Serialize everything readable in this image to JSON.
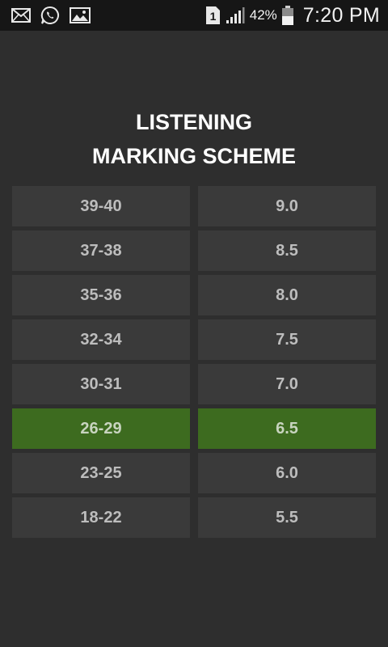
{
  "status_bar": {
    "icons_left": [
      "mail-icon",
      "whatsapp-icon",
      "gallery-icon"
    ],
    "sim_label": "1",
    "battery_percent": "42%",
    "time": "7:20 PM"
  },
  "title": {
    "line1": "LISTENING",
    "line2": "MARKING SCHEME"
  },
  "table": {
    "highlight_color": "#3d6b1f",
    "cell_color": "#3a3a3a",
    "rows": [
      {
        "score": "39-40",
        "band": "9.0",
        "highlighted": false
      },
      {
        "score": "37-38",
        "band": "8.5",
        "highlighted": false
      },
      {
        "score": "35-36",
        "band": "8.0",
        "highlighted": false
      },
      {
        "score": "32-34",
        "band": "7.5",
        "highlighted": false
      },
      {
        "score": "30-31",
        "band": "7.0",
        "highlighted": false
      },
      {
        "score": "26-29",
        "band": "6.5",
        "highlighted": true
      },
      {
        "score": "23-25",
        "band": "6.0",
        "highlighted": false
      },
      {
        "score": "18-22",
        "band": "5.5",
        "highlighted": false
      }
    ]
  }
}
